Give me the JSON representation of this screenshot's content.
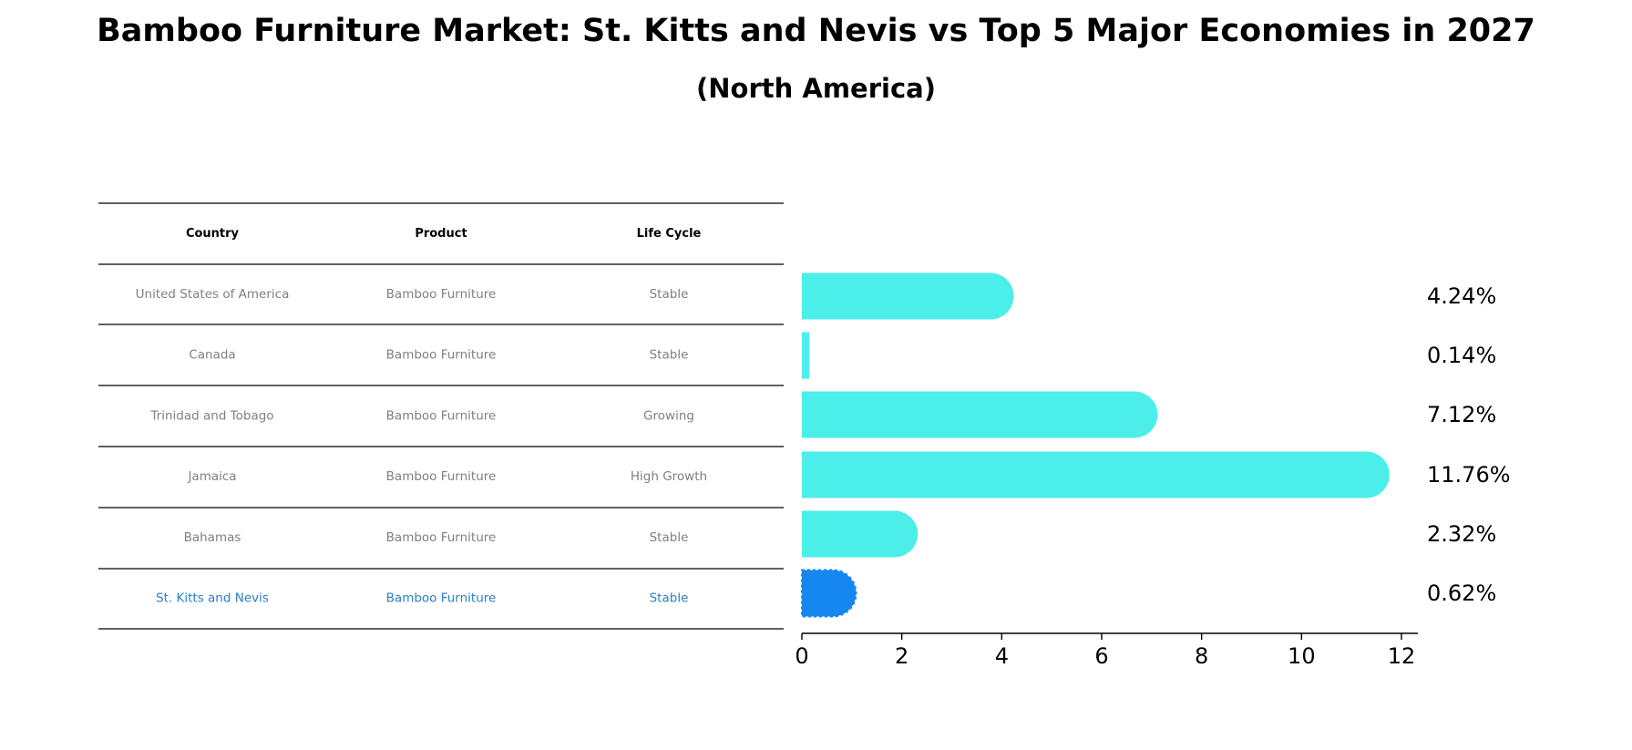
{
  "header": {
    "title": "Bamboo Furniture Market: St. Kitts and Nevis vs Top 5 Major Economies in 2027",
    "subtitle": "(North America)"
  },
  "table": {
    "columns": [
      "Country",
      "Product",
      "Life Cycle"
    ],
    "rows": [
      [
        "United States of America",
        "Bamboo Furniture",
        "Stable"
      ],
      [
        "Canada",
        "Bamboo Furniture",
        "Stable"
      ],
      [
        "Trinidad and Tobago",
        "Bamboo Furniture",
        "Growing"
      ],
      [
        "Jamaica",
        "Bamboo Furniture",
        "High Growth"
      ],
      [
        "Bahamas",
        "Bamboo Furniture",
        "Stable"
      ],
      [
        "St. Kitts and Nevis",
        "Bamboo Furniture",
        "Stable"
      ]
    ]
  },
  "colors": {
    "bar": "#4beee9",
    "highlight": "#1787f0",
    "highlight_text": "#2a7fc8",
    "muted_text": "#808080"
  },
  "chart_data": {
    "type": "bar",
    "orientation": "horizontal",
    "categories": [
      "United States of America",
      "Canada",
      "Trinidad and Tobago",
      "Jamaica",
      "Bahamas",
      "St. Kitts and Nevis"
    ],
    "values": [
      4.24,
      0.14,
      7.12,
      11.76,
      2.32,
      0.62
    ],
    "value_labels": [
      "4.24%",
      "0.14%",
      "7.12%",
      "11.76%",
      "2.32%",
      "0.62%"
    ],
    "highlight_index": 5,
    "xlim": [
      0,
      12.3
    ],
    "xticks": [
      0,
      2,
      4,
      6,
      8,
      10,
      12
    ],
    "grid": false
  }
}
